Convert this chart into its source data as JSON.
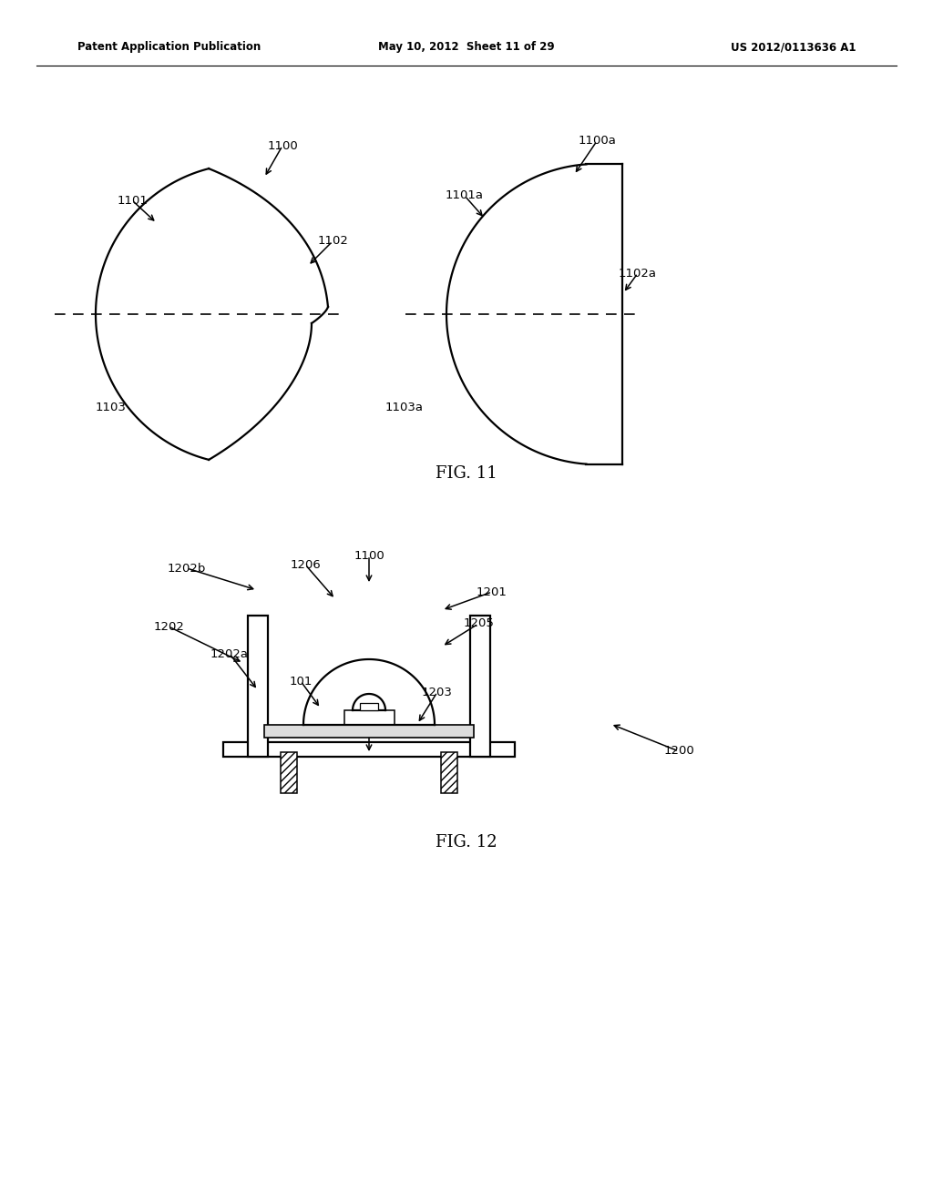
{
  "bg_color": "#ffffff",
  "header_left": "Patent Application Publication",
  "header_mid": "May 10, 2012  Sheet 11 of 29",
  "header_right": "US 2012/0113636 A1",
  "fig11_label": "FIG. 11",
  "fig12_label": "FIG. 12",
  "line_color": "#000000",
  "fig_width": 10.24,
  "fig_height": 13.2,
  "dpi": 100
}
